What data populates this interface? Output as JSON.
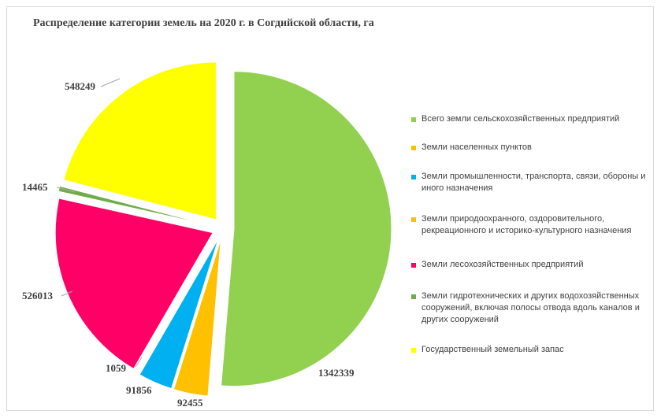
{
  "chart_data": {
    "type": "pie",
    "title": "Распределение категории земель на 2020 г. в Согдийской области, га",
    "legend_position": "right",
    "series": [
      {
        "name": "Всего земли сельскохозяйственных предприятий",
        "value": 1342339,
        "label": "1342339",
        "color": "#92d050"
      },
      {
        "name": "Земли населенных пунктов",
        "value": 92455,
        "label": "92455",
        "color": "#ffc000"
      },
      {
        "name": "Земли промышленности, транспорта, связи, обороны и иного назначения",
        "value": 91856,
        "label": "91856",
        "color": "#00b0f0"
      },
      {
        "name": "Земли природоохранного, оздоровительного, рекреационного и историко-культурного назначения",
        "value": 1059,
        "label": "1059",
        "color": "#ffc000"
      },
      {
        "name": "Земли лесохозяйственных предприятий",
        "value": 526013,
        "label": "526013",
        "color": "#ff0066"
      },
      {
        "name": "Земли гидротехнических и других водохозяйственных сооружений, включая полосы отвода вдоль каналов и других сооружений",
        "value": 14465,
        "label": "14465",
        "color": "#70ad47"
      },
      {
        "name": "Государственный земельный запас",
        "value": 548249,
        "label": "548249",
        "color": "#ffff00"
      }
    ]
  }
}
